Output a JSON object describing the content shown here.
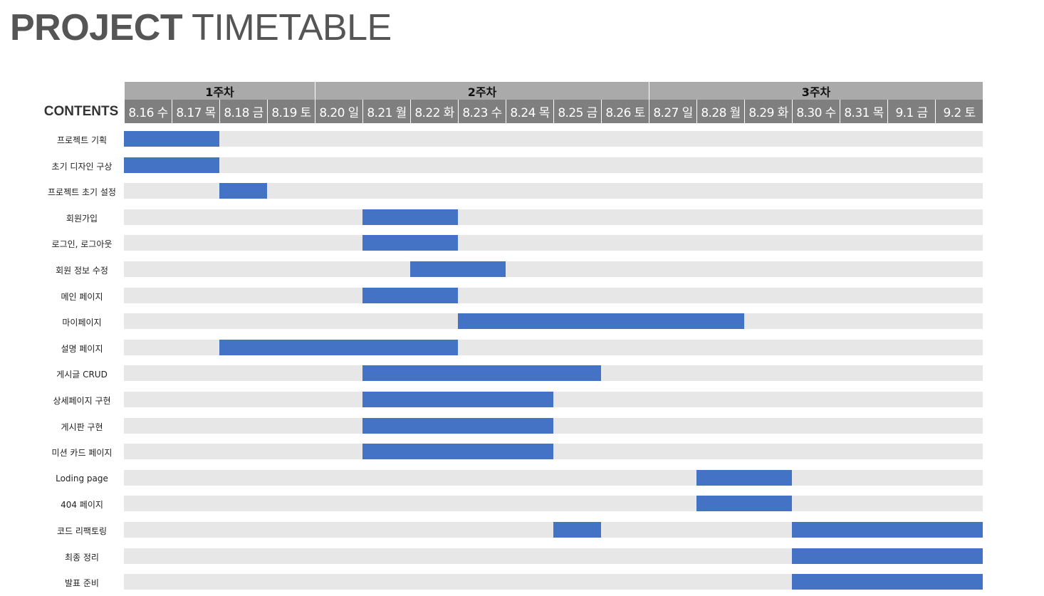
{
  "title_bold": "PROJECT",
  "title_light": "TIMETABLE",
  "chart_data": {
    "type": "gantt",
    "row_header": "CONTENTS",
    "weeks": [
      {
        "label": "1주차",
        "start": 0,
        "span": 4
      },
      {
        "label": "2주차",
        "start": 4,
        "span": 7
      },
      {
        "label": "3주차",
        "start": 11,
        "span": 7
      }
    ],
    "days": [
      "8.16 수",
      "8.17 목",
      "8.18 금",
      "8.19 토",
      "8.20 일",
      "8.21 월",
      "8.22 화",
      "8.23 수",
      "8.24 목",
      "8.25 금",
      "8.26 토",
      "8.27 일",
      "8.28 월",
      "8.29 화",
      "8.30 수",
      "8.31 목",
      "9.1 금",
      "9.2 토"
    ],
    "tasks": [
      {
        "name": "프로젝트 기획",
        "segments": [
          [
            0,
            2
          ]
        ]
      },
      {
        "name": "초기 디자인 구상",
        "segments": [
          [
            0,
            2
          ]
        ]
      },
      {
        "name": "프로젝트 초기 설정",
        "segments": [
          [
            2,
            1
          ]
        ]
      },
      {
        "name": "회원가입",
        "segments": [
          [
            5,
            2
          ]
        ]
      },
      {
        "name": "로그인, 로그아웃",
        "segments": [
          [
            5,
            2
          ]
        ]
      },
      {
        "name": "회원 정보 수정",
        "segments": [
          [
            6,
            2
          ]
        ]
      },
      {
        "name": "메인 페이지",
        "segments": [
          [
            5,
            2
          ]
        ]
      },
      {
        "name": "마이페이지",
        "segments": [
          [
            7,
            6
          ]
        ]
      },
      {
        "name": "설명 페이지",
        "segments": [
          [
            2,
            5
          ]
        ]
      },
      {
        "name": "게시글 CRUD",
        "segments": [
          [
            5,
            5
          ]
        ]
      },
      {
        "name": "상세페이지 구현",
        "segments": [
          [
            5,
            4
          ]
        ]
      },
      {
        "name": "게시판 구현",
        "segments": [
          [
            5,
            4
          ]
        ]
      },
      {
        "name": "미션 카드 페이지",
        "segments": [
          [
            5,
            4
          ]
        ]
      },
      {
        "name": "Loding page",
        "segments": [
          [
            12,
            2
          ]
        ]
      },
      {
        "name": "404 페이지",
        "segments": [
          [
            12,
            2
          ]
        ]
      },
      {
        "name": "코드 리팩토링",
        "segments": [
          [
            9,
            1
          ],
          [
            14,
            4
          ]
        ]
      },
      {
        "name": "최종 정리",
        "segments": [
          [
            14,
            4
          ]
        ]
      },
      {
        "name": "발표 준비",
        "segments": [
          [
            14,
            4
          ]
        ]
      }
    ],
    "colors": {
      "bar": "#4472c4",
      "row_background": "#e7e7e7",
      "week_header": "#aaaaaa",
      "day_header": "#7f7f7f"
    }
  }
}
